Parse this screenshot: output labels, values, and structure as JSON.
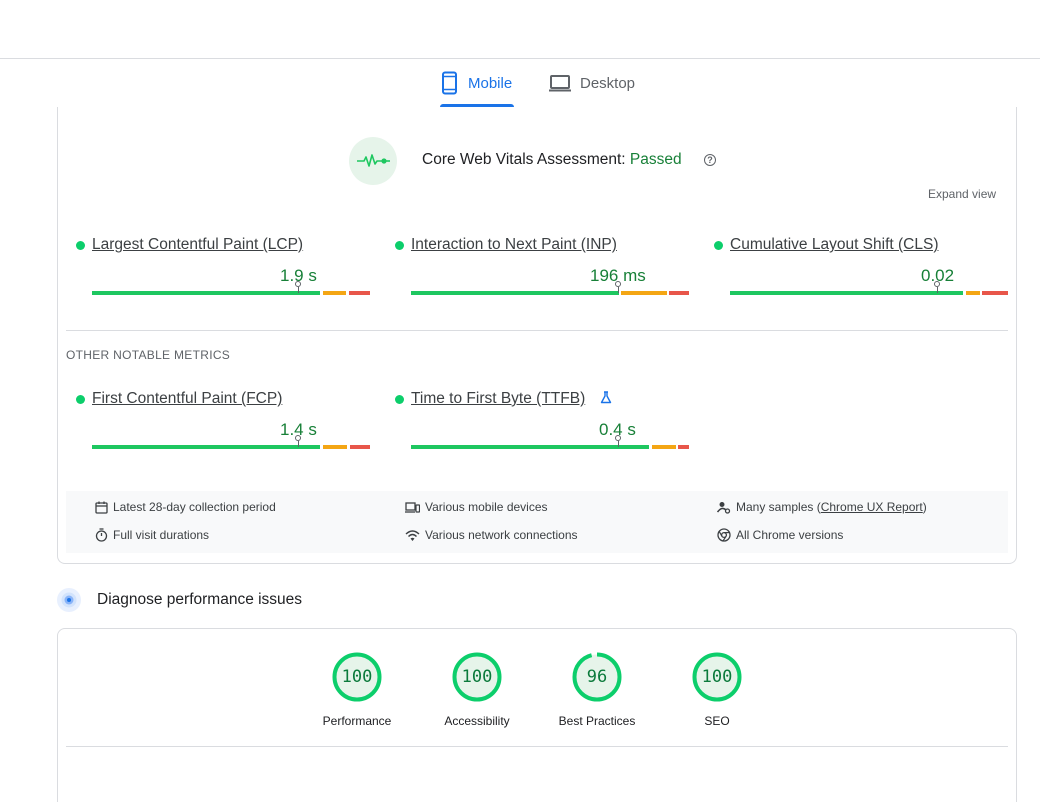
{
  "tabs": {
    "mobile_label": "Mobile",
    "desktop_label": "Desktop"
  },
  "assessment": {
    "title_prefix": "Core Web Vitals Assessment: ",
    "status": "Passed",
    "help_icon": "help-circle-icon",
    "pulse_icon": "heartbeat-icon",
    "expand_label": "Expand view"
  },
  "core_metrics": [
    {
      "name": "Largest Contentful Paint (LCP)",
      "value": "1.9 s"
    },
    {
      "name": "Interaction to Next Paint (INP)",
      "value": "196 ms"
    },
    {
      "name": "Cumulative Layout Shift (CLS)",
      "value": "0.02"
    }
  ],
  "other_label": "OTHER NOTABLE METRICS",
  "other_metrics": [
    {
      "name": "First Contentful Paint (FCP)",
      "value": "1.4 s"
    },
    {
      "name": "Time to First Byte (TTFB)",
      "value": "0.4 s",
      "badge_icon": "flask-icon"
    }
  ],
  "info": {
    "period": "Latest 28-day collection period",
    "durations": "Full visit durations",
    "devices": "Various mobile devices",
    "connections": "Various network connections",
    "samples_prefix": "Many samples (",
    "samples_link": "Chrome UX Report",
    "samples_suffix": ")",
    "versions": "All Chrome versions"
  },
  "diagnose": {
    "title": "Diagnose performance issues",
    "icon": "lighthouse-icon"
  },
  "scores": [
    {
      "label": "Performance",
      "value": "100"
    },
    {
      "label": "Accessibility",
      "value": "100"
    },
    {
      "label": "Best Practices",
      "value": "96"
    },
    {
      "label": "SEO",
      "value": "100"
    }
  ],
  "colors": {
    "accent": "#1a73e8",
    "good": "#0cce6b",
    "good_text": "#188038",
    "needs_improvement": "#f4a614",
    "poor": "#e8564a"
  }
}
